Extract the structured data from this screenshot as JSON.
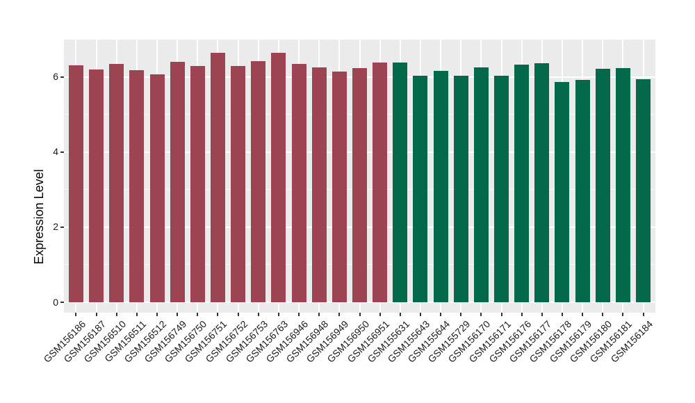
{
  "chart_data": {
    "type": "bar",
    "title": "",
    "xlabel": "",
    "ylabel": "Expression Level",
    "ylim": [
      0,
      7.0
    ],
    "yticks": [
      0,
      2,
      4,
      6
    ],
    "ygrid_minor": [
      1,
      3,
      5
    ],
    "grid": true,
    "legend": false,
    "categories": [
      "GSM156186",
      "GSM156187",
      "GSM156510",
      "GSM156511",
      "GSM156512",
      "GSM156749",
      "GSM156750",
      "GSM156751",
      "GSM156752",
      "GSM156753",
      "GSM156763",
      "GSM156946",
      "GSM156948",
      "GSM156949",
      "GSM156950",
      "GSM156951",
      "GSM155631",
      "GSM155643",
      "GSM155644",
      "GSM155729",
      "GSM156170",
      "GSM156171",
      "GSM156176",
      "GSM156177",
      "GSM156178",
      "GSM156179",
      "GSM156180",
      "GSM156181",
      "GSM156184"
    ],
    "values": [
      6.3,
      6.2,
      6.35,
      6.18,
      6.07,
      6.4,
      6.29,
      6.64,
      6.29,
      6.42,
      6.65,
      6.35,
      6.26,
      6.14,
      6.24,
      6.39,
      6.38,
      6.04,
      6.17,
      6.04,
      6.26,
      6.04,
      6.33,
      6.37,
      5.86,
      5.92,
      6.22,
      6.24,
      5.94
    ],
    "bar_groups": [
      {
        "color": "#9D4452",
        "start": 0,
        "count": 16
      },
      {
        "color": "#03694A",
        "start": 16,
        "count": 13
      }
    ],
    "style": {
      "panel_background": "#EBEBEB",
      "grid_major_color": "#FFFFFF",
      "grid_minor_opacity": 0.55,
      "tick_color": "#333333",
      "text_color": "#1a1a1a"
    }
  }
}
